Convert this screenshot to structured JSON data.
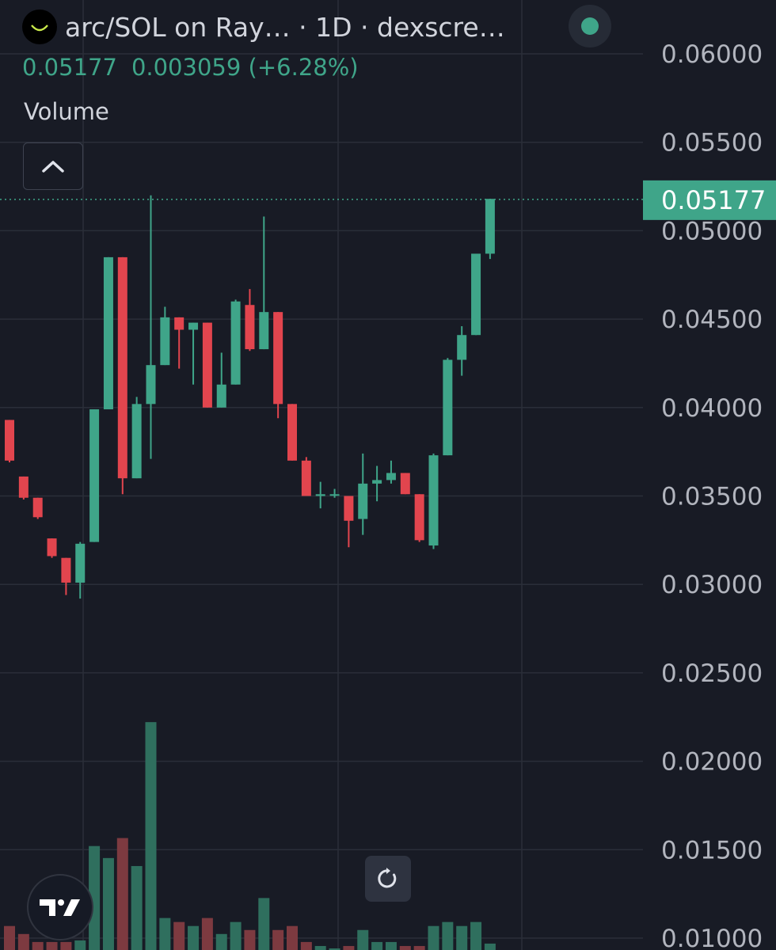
{
  "header": {
    "title": "arc/SOL on Ray… · 1D · dexscre…",
    "ohlc": {
      "last": "0.05177",
      "change": "0.003059",
      "change_pct": "(+6.28%)"
    },
    "volume_label": "Volume"
  },
  "icons": {
    "logo": "arc-logo-icon",
    "status": "live-status-dot-icon",
    "collapse": "chevron-up-icon",
    "reset": "reset-chart-icon",
    "brand": "tradingview-logo-icon"
  },
  "colors": {
    "up": "#3fa589",
    "down": "#e2454e",
    "background": "#181b25",
    "grid": "#2a2e39",
    "axis_text": "#b2b5be",
    "price_tag": "#3fa589"
  },
  "chart_data": {
    "type": "candlestick",
    "interval": "1D",
    "y_axis": {
      "ticks": [
        "0.06000",
        "0.05500",
        "0.05000",
        "0.04500",
        "0.04000",
        "0.03500",
        "0.03000",
        "0.02500",
        "0.02000",
        "0.01500",
        "0.01000"
      ],
      "range": [
        0.01,
        0.0616
      ]
    },
    "last_price_label": "0.05177",
    "candles": [
      {
        "o": 0.0393,
        "h": 0.0393,
        "l": 0.0369,
        "c": 0.037
      },
      {
        "o": 0.0361,
        "h": 0.0361,
        "l": 0.0348,
        "c": 0.0349
      },
      {
        "o": 0.0349,
        "h": 0.0349,
        "l": 0.0337,
        "c": 0.0338
      },
      {
        "o": 0.0326,
        "h": 0.0326,
        "l": 0.0315,
        "c": 0.0316
      },
      {
        "o": 0.0315,
        "h": 0.0315,
        "l": 0.0294,
        "c": 0.0301
      },
      {
        "o": 0.0301,
        "h": 0.0324,
        "l": 0.0292,
        "c": 0.0323
      },
      {
        "o": 0.0324,
        "h": 0.0399,
        "l": 0.0324,
        "c": 0.0399
      },
      {
        "o": 0.0399,
        "h": 0.0485,
        "l": 0.0399,
        "c": 0.0485
      },
      {
        "o": 0.0485,
        "h": 0.0485,
        "l": 0.0351,
        "c": 0.036
      },
      {
        "o": 0.036,
        "h": 0.0406,
        "l": 0.036,
        "c": 0.0402
      },
      {
        "o": 0.0402,
        "h": 0.052,
        "l": 0.0371,
        "c": 0.0424
      },
      {
        "o": 0.0424,
        "h": 0.0457,
        "l": 0.0424,
        "c": 0.0451
      },
      {
        "o": 0.0451,
        "h": 0.0451,
        "l": 0.0422,
        "c": 0.0444
      },
      {
        "o": 0.0444,
        "h": 0.0448,
        "l": 0.0413,
        "c": 0.0448
      },
      {
        "o": 0.0448,
        "h": 0.0448,
        "l": 0.04,
        "c": 0.04
      },
      {
        "o": 0.04,
        "h": 0.0431,
        "l": 0.04,
        "c": 0.0413
      },
      {
        "o": 0.0413,
        "h": 0.0461,
        "l": 0.0413,
        "c": 0.046
      },
      {
        "o": 0.0458,
        "h": 0.0467,
        "l": 0.0432,
        "c": 0.0433
      },
      {
        "o": 0.0433,
        "h": 0.0508,
        "l": 0.0433,
        "c": 0.0454
      },
      {
        "o": 0.0454,
        "h": 0.0454,
        "l": 0.0394,
        "c": 0.0402
      },
      {
        "o": 0.0402,
        "h": 0.0402,
        "l": 0.037,
        "c": 0.037
      },
      {
        "o": 0.037,
        "h": 0.0372,
        "l": 0.035,
        "c": 0.035
      },
      {
        "o": 0.035,
        "h": 0.0358,
        "l": 0.0343,
        "c": 0.0351
      },
      {
        "o": 0.0351,
        "h": 0.0354,
        "l": 0.0349,
        "c": 0.0351
      },
      {
        "o": 0.035,
        "h": 0.035,
        "l": 0.0321,
        "c": 0.0336
      },
      {
        "o": 0.0337,
        "h": 0.0374,
        "l": 0.0328,
        "c": 0.0357
      },
      {
        "o": 0.0357,
        "h": 0.0367,
        "l": 0.0347,
        "c": 0.0359
      },
      {
        "o": 0.0359,
        "h": 0.037,
        "l": 0.0357,
        "c": 0.0363
      },
      {
        "o": 0.0363,
        "h": 0.0363,
        "l": 0.0351,
        "c": 0.0351
      },
      {
        "o": 0.0351,
        "h": 0.0351,
        "l": 0.0324,
        "c": 0.0325
      },
      {
        "o": 0.0322,
        "h": 0.0374,
        "l": 0.032,
        "c": 0.0373
      },
      {
        "o": 0.0373,
        "h": 0.0428,
        "l": 0.0373,
        "c": 0.0427
      },
      {
        "o": 0.0427,
        "h": 0.0446,
        "l": 0.0418,
        "c": 0.0441
      },
      {
        "o": 0.0441,
        "h": 0.0487,
        "l": 0.0441,
        "c": 0.0487
      },
      {
        "o": 0.0487,
        "h": 0.0518,
        "l": 0.0484,
        "c": 0.0518
      }
    ],
    "volume": [
      0.3,
      0.2,
      0.1,
      0.1,
      0.1,
      0.12,
      1.3,
      1.15,
      1.4,
      1.05,
      2.85,
      0.4,
      0.35,
      0.3,
      0.4,
      0.2,
      0.35,
      0.25,
      0.65,
      0.25,
      0.3,
      0.1,
      0.05,
      0.02,
      0.05,
      0.25,
      0.1,
      0.1,
      0.05,
      0.05,
      0.3,
      0.35,
      0.3,
      0.35,
      0.08
    ]
  }
}
